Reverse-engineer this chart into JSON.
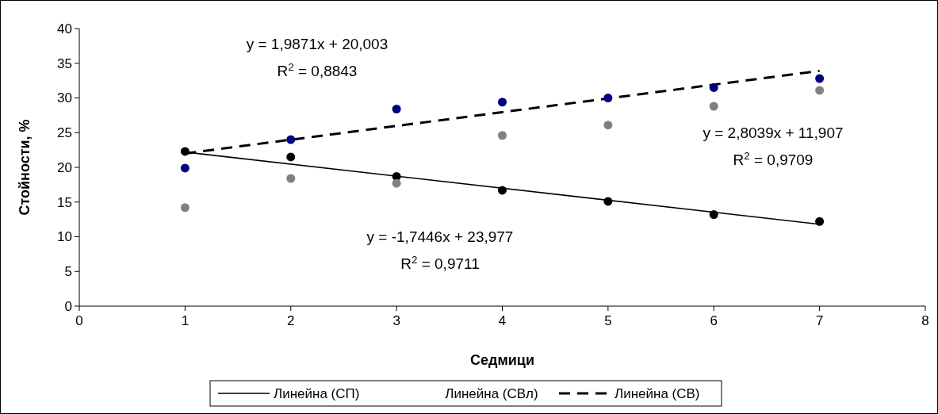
{
  "chart_data": {
    "type": "scatter",
    "xlabel": "Седмици",
    "ylabel": "Стойности, %",
    "xlim": [
      0,
      8
    ],
    "xticks": [
      0,
      1,
      2,
      3,
      4,
      5,
      6,
      7,
      8
    ],
    "ylim": [
      0,
      40
    ],
    "yticks": [
      0,
      5,
      10,
      15,
      20,
      25,
      30,
      35,
      40
    ],
    "legend": "bottom",
    "marker": "circle",
    "series": [
      {
        "type": "line",
        "name": "Линейна (СП)",
        "color": "#000000",
        "line_style": "solid",
        "marker": "none",
        "x": [
          1,
          7
        ],
        "values": [
          22.2,
          11.8
        ]
      },
      {
        "type": "line",
        "name": "Линейна (СВ)",
        "color": "#000000",
        "line_style": "dashed",
        "marker": "none",
        "x": [
          1,
          7
        ],
        "values": [
          22.0,
          33.9
        ]
      },
      {
        "color": "#000000",
        "x": [
          1,
          2,
          3,
          4,
          5,
          6,
          7
        ],
        "values": [
          22.3,
          21.5,
          18.7,
          16.7,
          15.1,
          13.2,
          12.2
        ]
      },
      {
        "color": "#808080",
        "x": [
          1,
          2,
          3,
          4,
          5,
          6,
          7
        ],
        "values": [
          14.2,
          18.4,
          17.7,
          24.6,
          26.1,
          28.8,
          31.1
        ]
      },
      {
        "color": "#000080",
        "x": [
          1,
          2,
          3,
          4,
          5,
          6,
          7
        ],
        "values": [
          19.9,
          24.0,
          28.4,
          29.4,
          30.0,
          31.5,
          32.8
        ]
      }
    ],
    "annotations": [
      "y = 1,9871x + 20,003",
      "R$^{2}$ = 0,8843",
      "y = 2,8039x + 11,907",
      "R$^{2}$ = 0,9709",
      "y = -1,7446x + 23,977",
      "R$^{2}$ = 0,9711",
      "Линейна (СВл)"
    ]
  }
}
